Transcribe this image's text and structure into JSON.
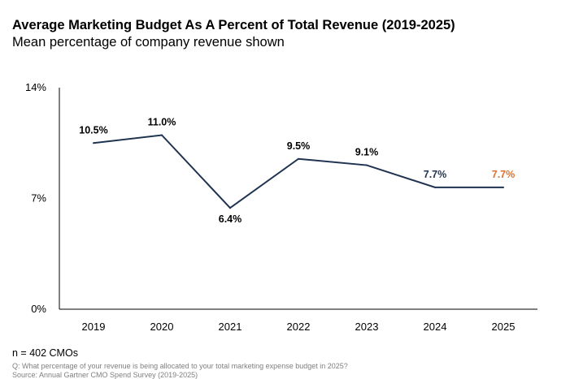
{
  "chart_data": {
    "type": "line",
    "title": "Average Marketing Budget As A Percent of Total Revenue (2019-2025)",
    "subtitle": "Mean percentage of company revenue shown",
    "categories": [
      "2019",
      "2020",
      "2021",
      "2022",
      "2023",
      "2024",
      "2025"
    ],
    "values": [
      10.5,
      11.0,
      6.4,
      9.5,
      9.1,
      7.7,
      7.7
    ],
    "data_labels": [
      "10.5%",
      "11.0%",
      "6.4%",
      "9.5%",
      "9.1%",
      "7.7%",
      "7.7%"
    ],
    "y_ticks": [
      0,
      7,
      14
    ],
    "y_tick_labels": [
      "0%",
      "7%",
      "14%"
    ],
    "ylim": [
      0,
      14
    ],
    "grid": false,
    "legend": "none",
    "colors": {
      "line": "#1f3350",
      "label_default": "#000000",
      "label_2024": "#1f3350",
      "label_2025": "#e0702b",
      "axis": "#000000"
    }
  },
  "footer": {
    "sample": "n = 402 CMOs",
    "question": "Q: What percentage of your revenue is being allocated to your total marketing expense budget in 2025?",
    "source": "Source: Annual Gartner CMO Spend Survey (2019-2025)"
  }
}
